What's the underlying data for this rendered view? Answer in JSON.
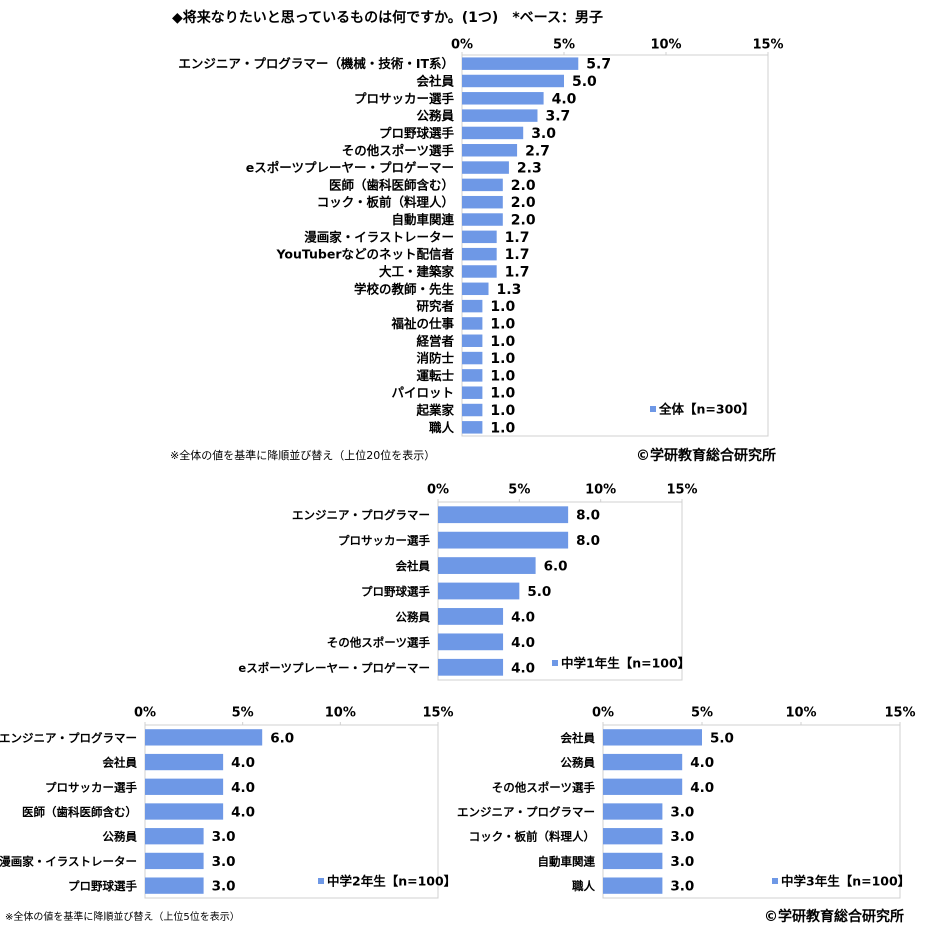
{
  "chart_data": [
    {
      "type": "bar",
      "orientation": "horizontal",
      "title": "◆将来なりたいと思っているものは何ですか。(1つ)　*ベース：男子",
      "categories": [
        "エンジニア・プログラマー（機械・技術・IT系）",
        "会社員",
        "プロサッカー選手",
        "公務員",
        "プロ野球選手",
        "その他スポーツ選手",
        "eスポーツプレーヤー・プロゲーマー",
        "医師（歯科医師含む）",
        "コック・板前（料理人）",
        "自動車関連",
        "漫画家・イラストレーター",
        "YouTuberなどのネット配信者",
        "大工・建築家",
        "学校の教師・先生",
        "研究者",
        "福祉の仕事",
        "経営者",
        "消防士",
        "運転士",
        "パイロット",
        "起業家",
        "職人"
      ],
      "series": [
        {
          "name": "全体【n=300】",
          "color": "#6e98e6",
          "values": [
            5.7,
            5.0,
            4.0,
            3.7,
            3.0,
            2.7,
            2.3,
            2.0,
            2.0,
            2.0,
            1.7,
            1.7,
            1.7,
            1.3,
            1.0,
            1.0,
            1.0,
            1.0,
            1.0,
            1.0,
            1.0,
            1.0
          ],
          "value_labels": [
            "5.7",
            "5.0",
            "4.0",
            "3.7",
            "3.0",
            "2.7",
            "2.3",
            "2.0",
            "2.0",
            "2.0",
            "1.7",
            "1.7",
            "1.7",
            "1.3",
            "1.0",
            "1.0",
            "1.0",
            "1.0",
            "1.0",
            "1.0",
            "1.0",
            "1.0"
          ]
        }
      ],
      "xlim": [
        0,
        15
      ],
      "xticks": [
        {
          "value": 0,
          "label": "0%"
        },
        {
          "value": 5,
          "label": "5%"
        },
        {
          "value": 10,
          "label": "10%"
        },
        {
          "value": 15,
          "label": "15%"
        }
      ]
    },
    {
      "type": "bar",
      "orientation": "horizontal",
      "categories": [
        "エンジニア・プログラマー",
        "プロサッカー選手",
        "会社員",
        "プロ野球選手",
        "公務員",
        "その他スポーツ選手",
        "eスポーツプレーヤー・プロゲーマー"
      ],
      "series": [
        {
          "name": "中学1年生【n=100】",
          "color": "#6e98e6",
          "values": [
            8.0,
            8.0,
            6.0,
            5.0,
            4.0,
            4.0,
            4.0
          ],
          "value_labels": [
            "8.0",
            "8.0",
            "6.0",
            "5.0",
            "4.0",
            "4.0",
            "4.0"
          ]
        }
      ],
      "xlim": [
        0,
        15
      ],
      "xticks": [
        {
          "value": 0,
          "label": "0%"
        },
        {
          "value": 5,
          "label": "5%"
        },
        {
          "value": 10,
          "label": "10%"
        },
        {
          "value": 15,
          "label": "15%"
        }
      ]
    },
    {
      "type": "bar",
      "orientation": "horizontal",
      "categories": [
        "エンジニア・プログラマー",
        "会社員",
        "プロサッカー選手",
        "医師（歯科医師含む）",
        "公務員",
        "漫画家・イラストレーター",
        "プロ野球選手"
      ],
      "series": [
        {
          "name": "中学2年生【n=100】",
          "color": "#6e98e6",
          "values": [
            6.0,
            4.0,
            4.0,
            4.0,
            3.0,
            3.0,
            3.0
          ],
          "value_labels": [
            "6.0",
            "4.0",
            "4.0",
            "4.0",
            "3.0",
            "3.0",
            "3.0"
          ]
        }
      ],
      "xlim": [
        0,
        15
      ],
      "xticks": [
        {
          "value": 0,
          "label": "0%"
        },
        {
          "value": 5,
          "label": "5%"
        },
        {
          "value": 10,
          "label": "10%"
        },
        {
          "value": 15,
          "label": "15%"
        }
      ]
    },
    {
      "type": "bar",
      "orientation": "horizontal",
      "categories": [
        "会社員",
        "公務員",
        "その他スポーツ選手",
        "エンジニア・プログラマー",
        "コック・板前（料理人）",
        "自動車関連",
        "職人"
      ],
      "series": [
        {
          "name": "中学3年生【n=100】",
          "color": "#6e98e6",
          "values": [
            5.0,
            4.0,
            4.0,
            3.0,
            3.0,
            3.0,
            3.0
          ],
          "value_labels": [
            "5.0",
            "4.0",
            "4.0",
            "3.0",
            "3.0",
            "3.0",
            "3.0"
          ]
        }
      ],
      "xlim": [
        0,
        15
      ],
      "xticks": [
        {
          "value": 0,
          "label": "0%"
        },
        {
          "value": 5,
          "label": "5%"
        },
        {
          "value": 10,
          "label": "10%"
        },
        {
          "value": 15,
          "label": "15%"
        }
      ]
    }
  ],
  "notes": [
    "※全体の値を基準に降順並び替え（上位20位を表示）",
    "※全体の値を基準に降順並び替え（上位5位を表示）"
  ],
  "credits": [
    "©学研教育総合研究所",
    "©学研教育総合研究所"
  ]
}
